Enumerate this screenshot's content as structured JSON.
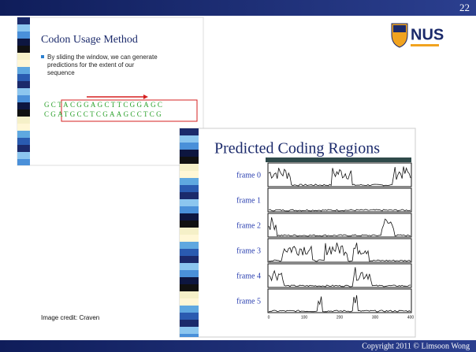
{
  "header": {
    "page_number": "22"
  },
  "logo": {
    "text": "NUS"
  },
  "left_slide": {
    "title": "Codon Usage Method",
    "bullet": [
      "By sliding the window, we can generate",
      "predictions for the extent of our",
      "sequence"
    ],
    "sequence": {
      "top": "GCTACGGAGCTTCGGAGC",
      "bottom": "CGATGCCTCGAAGCCTCG"
    }
  },
  "right_slide": {
    "title": "Predicted Coding Regions",
    "frames": [
      "frame 0",
      "frame 1",
      "frame 2",
      "frame 3",
      "frame 4",
      "frame 5"
    ],
    "axis_labels": [
      "0",
      "100",
      "200",
      "300",
      "400"
    ]
  },
  "credit": "Image credit: Craven",
  "footer": {
    "copyright": "Copyright 2011 © Limsoon Wong"
  }
}
